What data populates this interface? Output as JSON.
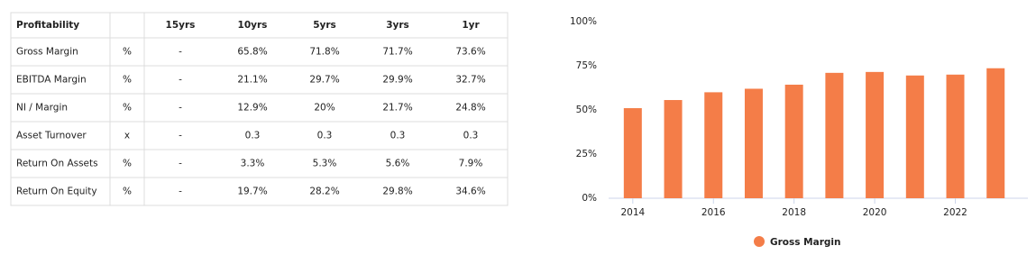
{
  "table": {
    "header": [
      "Profitability",
      "",
      "15yrs",
      "10yrs",
      "5yrs",
      "3yrs",
      "1yr"
    ],
    "rows": [
      [
        "Gross Margin",
        "%",
        "-",
        "65.8%",
        "71.8%",
        "71.7%",
        "73.6%"
      ],
      [
        "EBITDA Margin",
        "%",
        "-",
        "21.1%",
        "29.7%",
        "29.9%",
        "32.7%"
      ],
      [
        "NI / Margin",
        "%",
        "-",
        "12.9%",
        "20%",
        "21.7%",
        "24.8%"
      ],
      [
        "Asset Turnover",
        "x",
        "-",
        "0.3",
        "0.3",
        "0.3",
        "0.3"
      ],
      [
        "Return On Assets",
        "%",
        "-",
        "3.3%",
        "5.3%",
        "5.6%",
        "7.9%"
      ],
      [
        "Return On Equity",
        "%",
        "-",
        "19.7%",
        "28.2%",
        "29.8%",
        "34.6%"
      ]
    ]
  },
  "chart_data": {
    "type": "bar",
    "x": [
      2014,
      2015,
      2016,
      2017,
      2018,
      2019,
      2020,
      2021,
      2022,
      2023
    ],
    "series": [
      {
        "name": "Gross Margin",
        "color": "#f47d48",
        "values": [
          51,
          55.6,
          60,
          62,
          64.3,
          71,
          71.5,
          69.5,
          70,
          73.6
        ]
      }
    ],
    "xlim": [
      2013.4,
      2023.8
    ],
    "xticks": [
      2014,
      2016,
      2018,
      2020,
      2022
    ],
    "ylim": [
      0,
      100
    ],
    "yticks": [
      {
        "value": 0,
        "label": "0%"
      },
      {
        "value": 25,
        "label": "25%"
      },
      {
        "value": 50,
        "label": "50%"
      },
      {
        "value": 75,
        "label": "75%"
      },
      {
        "value": 100,
        "label": "100%"
      }
    ],
    "legend": "bottom"
  }
}
